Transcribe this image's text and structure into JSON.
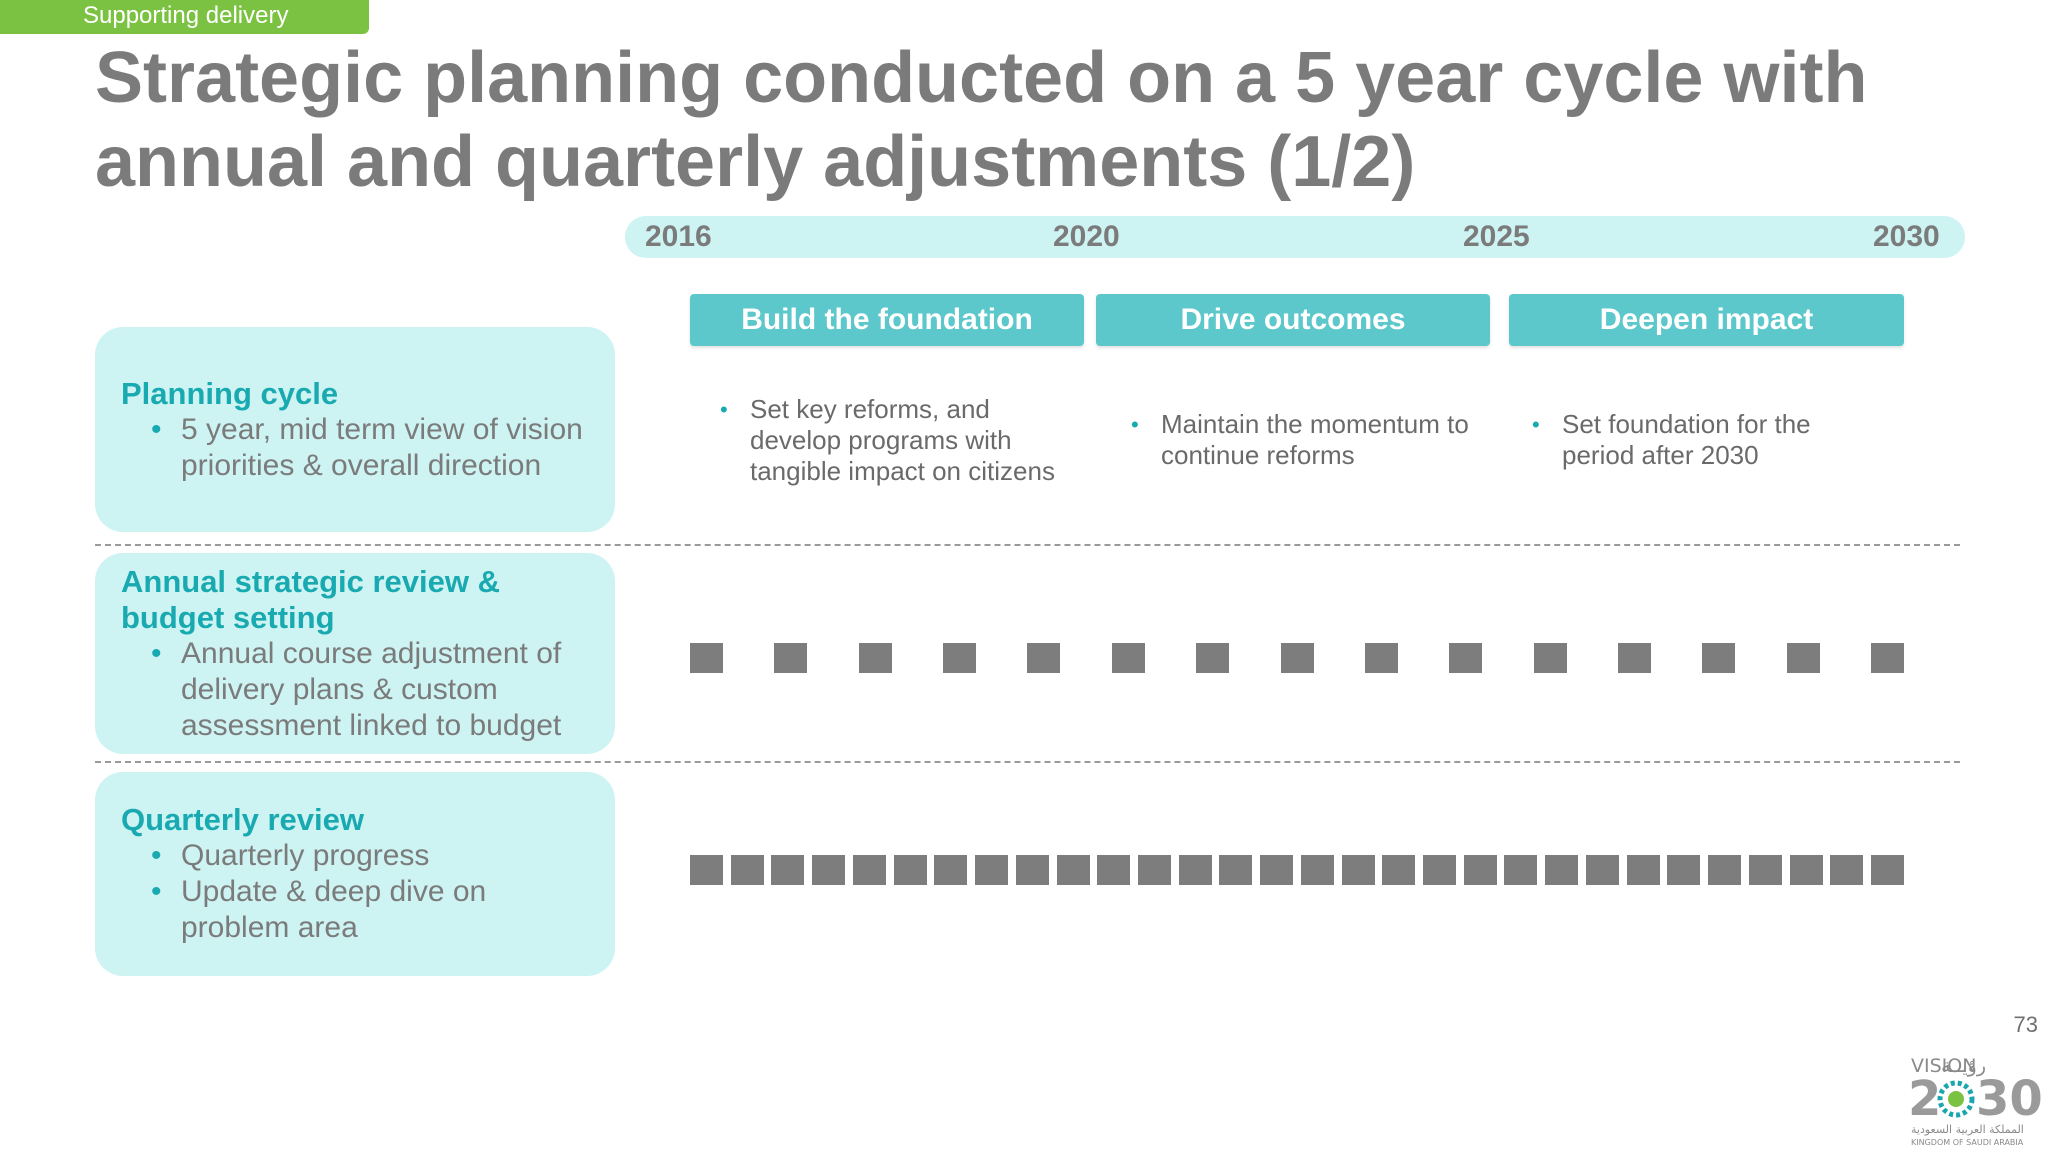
{
  "tag": "Supporting delivery",
  "title_line1": "Strategic planning conducted on a 5 year cycle with",
  "title_line2": "annual and quarterly adjustments (1/2)",
  "timeline": {
    "years": [
      "2016",
      "2020",
      "2025",
      "2030"
    ]
  },
  "phases": [
    {
      "label": "Build the foundation",
      "text": [
        "Set key reforms, and",
        "develop programs with",
        "tangible impact on citizens"
      ]
    },
    {
      "label": "Drive outcomes",
      "text": [
        "Maintain the momentum to",
        "continue reforms"
      ]
    },
    {
      "label": "Deepen impact",
      "text": [
        "Set foundation for the",
        "period after 2030"
      ]
    }
  ],
  "rows": [
    {
      "title": "Planning cycle",
      "bullets": [
        "5 year, mid term view of vision priorities & overall direction"
      ]
    },
    {
      "title": "Annual strategic review & budget setting",
      "bullets": [
        "Annual course adjustment of delivery plans & custom assessment linked to budget"
      ]
    },
    {
      "title": "Quarterly review",
      "bullets": [
        "Quarterly progress",
        "Update & deep dive on problem area"
      ]
    }
  ],
  "annual_markers": 15,
  "quarterly_markers": 30,
  "marker_color": "#7d7d7d",
  "accent_color": "#18aab0",
  "page_number": "73",
  "logo": {
    "text": "VISION 2030",
    "arabic": "رؤية",
    "sub_ar": "المملكة العربية السعودية",
    "sub_en": "KINGDOM OF SAUDI ARABIA"
  }
}
